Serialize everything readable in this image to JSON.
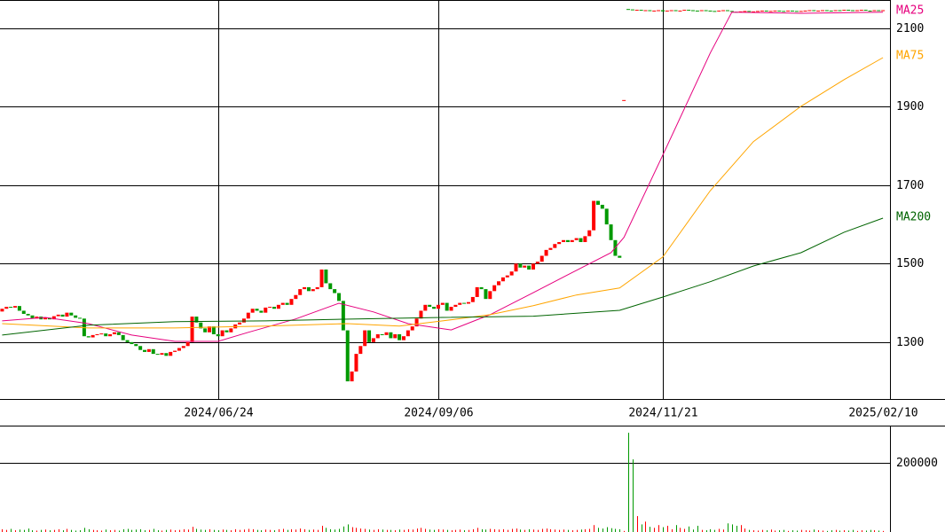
{
  "chart_data": {
    "type": "candlestick",
    "categories": [
      null,
      null,
      null,
      null,
      null,
      null,
      null,
      null,
      null,
      null,
      null,
      null,
      null,
      null,
      null,
      null,
      null,
      null,
      null,
      null,
      null,
      null,
      null,
      null,
      null,
      null,
      null,
      null,
      null,
      null,
      null,
      null,
      null,
      null,
      null,
      null,
      null,
      null,
      null,
      null,
      null,
      null,
      null,
      null,
      null,
      null,
      null,
      null,
      null,
      null,
      "2024/06/24",
      null,
      null,
      null,
      null,
      null,
      null,
      null,
      null,
      null,
      null,
      null,
      null,
      null,
      null,
      null,
      null,
      null,
      null,
      null,
      null,
      null,
      null,
      null,
      null,
      null,
      null,
      null,
      null,
      null,
      null,
      null,
      null,
      null,
      null,
      null,
      null,
      null,
      null,
      null,
      null,
      null,
      null,
      null,
      null,
      null,
      null,
      null,
      null,
      null,
      null,
      "2024/09/06",
      null,
      null,
      null,
      null,
      null,
      null,
      null,
      null,
      null,
      null,
      null,
      null,
      null,
      null,
      null,
      null,
      null,
      null,
      null,
      null,
      null,
      null,
      null,
      null,
      null,
      null,
      null,
      null,
      null,
      null,
      null,
      null,
      null,
      null,
      null,
      null,
      null,
      null,
      null,
      null,
      null,
      null,
      null,
      null,
      null,
      null,
      null,
      null,
      null,
      null,
      null,
      "2024/11/21",
      null,
      null,
      null,
      null,
      null,
      null,
      null,
      null,
      null,
      null,
      null,
      null,
      null,
      null,
      null,
      null,
      null,
      null,
      null,
      null,
      null,
      null,
      null,
      null,
      null,
      null,
      null,
      null,
      null,
      null,
      null,
      null,
      null,
      null,
      null,
      null,
      null,
      null,
      null,
      null,
      null,
      null,
      null,
      null,
      null,
      null,
      null,
      null,
      null,
      null,
      "2025/02/10"
    ],
    "open": [
      1378,
      1385,
      1390,
      1388,
      1392,
      1380,
      1372,
      1368,
      1360,
      1365,
      1358,
      1362,
      1358,
      1366,
      1370,
      1365,
      1375,
      1368,
      1362,
      1360,
      1315,
      1312,
      1318,
      1320,
      1322,
      1315,
      1320,
      1325,
      1318,
      1305,
      1300,
      1295,
      1290,
      1280,
      1275,
      1282,
      1270,
      1268,
      1272,
      1265,
      1275,
      1278,
      1285,
      1290,
      1300,
      1365,
      1350,
      1335,
      1325,
      1340,
      1320,
      1315,
      1330,
      1325,
      1335,
      1345,
      1350,
      1360,
      1375,
      1385,
      1380,
      1375,
      1388,
      1390,
      1385,
      1395,
      1400,
      1395,
      1410,
      1420,
      1435,
      1440,
      1430,
      1435,
      1440,
      1485,
      1450,
      1435,
      1425,
      1405,
      1330,
      1200,
      1225,
      1270,
      1290,
      1330,
      1300,
      1310,
      1320,
      1318,
      1325,
      1310,
      1320,
      1305,
      1315,
      1330,
      1340,
      1360,
      1380,
      1395,
      1390,
      1385,
      1395,
      1400,
      1380,
      1390,
      1395,
      1400,
      1398,
      1402,
      1415,
      1440,
      1435,
      1410,
      1430,
      1445,
      1455,
      1465,
      1470,
      1480,
      1500,
      1490,
      1495,
      1485,
      1500,
      1505,
      1520,
      1535,
      1540,
      1550,
      1555,
      1560,
      1555,
      1560,
      1565,
      1555,
      1570,
      1585,
      1660,
      1650,
      1640,
      1600,
      1560,
      1520,
      1917,
      2149,
      2148,
      2146,
      2147,
      2145,
      2146,
      2144,
      2145,
      2146,
      2143,
      2145,
      2146,
      2144,
      2145,
      2147,
      2146,
      2145,
      2144,
      2146,
      2145,
      2144,
      2143,
      2145,
      2146,
      2144,
      2142,
      2141,
      2143,
      2144,
      2142,
      2143,
      2144,
      2145,
      2143,
      2144,
      2145,
      2144,
      2143,
      2145,
      2144,
      2143,
      2144,
      2145,
      2146,
      2144,
      2145,
      2146,
      2145,
      2144,
      2146,
      2145,
      2147,
      2146,
      2145,
      2146,
      2147,
      2145,
      2144,
      2146,
      2145
    ],
    "close": [
      1385,
      1390,
      1388,
      1392,
      1380,
      1372,
      1368,
      1360,
      1365,
      1358,
      1362,
      1358,
      1366,
      1370,
      1365,
      1375,
      1368,
      1362,
      1360,
      1315,
      1312,
      1318,
      1320,
      1322,
      1315,
      1320,
      1325,
      1318,
      1305,
      1300,
      1295,
      1290,
      1280,
      1275,
      1282,
      1270,
      1268,
      1272,
      1265,
      1275,
      1278,
      1285,
      1290,
      1300,
      1365,
      1350,
      1335,
      1325,
      1340,
      1320,
      1315,
      1330,
      1325,
      1335,
      1345,
      1350,
      1360,
      1375,
      1385,
      1380,
      1375,
      1388,
      1390,
      1385,
      1395,
      1400,
      1395,
      1410,
      1420,
      1435,
      1440,
      1430,
      1435,
      1440,
      1485,
      1450,
      1435,
      1425,
      1405,
      1330,
      1200,
      1225,
      1270,
      1290,
      1330,
      1300,
      1310,
      1320,
      1318,
      1325,
      1310,
      1320,
      1305,
      1315,
      1330,
      1340,
      1360,
      1380,
      1395,
      1390,
      1385,
      1395,
      1400,
      1380,
      1390,
      1395,
      1400,
      1398,
      1402,
      1415,
      1440,
      1435,
      1410,
      1430,
      1445,
      1455,
      1465,
      1470,
      1480,
      1500,
      1490,
      1495,
      1485,
      1500,
      1505,
      1520,
      1535,
      1540,
      1550,
      1555,
      1560,
      1555,
      1560,
      1565,
      1555,
      1570,
      1585,
      1660,
      1650,
      1640,
      1600,
      1560,
      1520,
      1515,
      1917,
      2148,
      2146,
      2147,
      2145,
      2146,
      2144,
      2145,
      2146,
      2143,
      2145,
      2146,
      2144,
      2145,
      2147,
      2146,
      2145,
      2144,
      2146,
      2145,
      2144,
      2143,
      2145,
      2146,
      2144,
      2142,
      2141,
      2143,
      2144,
      2142,
      2143,
      2144,
      2145,
      2143,
      2144,
      2145,
      2144,
      2143,
      2145,
      2144,
      2143,
      2144,
      2145,
      2146,
      2144,
      2145,
      2146,
      2145,
      2144,
      2146,
      2145,
      2147,
      2146,
      2145,
      2146,
      2147,
      2145,
      2144,
      2146,
      2145,
      2146
    ],
    "volume": [
      8000,
      6000,
      9000,
      5000,
      7000,
      6000,
      10000,
      5000,
      4000,
      6000,
      7000,
      5000,
      6000,
      8000,
      5000,
      9000,
      6000,
      4000,
      5000,
      12000,
      8000,
      6000,
      5000,
      4000,
      7000,
      5000,
      6000,
      4000,
      8000,
      9000,
      6000,
      7000,
      8000,
      5000,
      6000,
      9000,
      5000,
      4000,
      6000,
      7000,
      5000,
      6000,
      8000,
      7000,
      15000,
      9000,
      7000,
      6000,
      8000,
      6000,
      5000,
      7000,
      6000,
      5000,
      8000,
      6000,
      7000,
      9000,
      8000,
      6000,
      5000,
      7000,
      6000,
      5000,
      8000,
      9000,
      6000,
      8000,
      7000,
      10000,
      8000,
      6000,
      7000,
      6000,
      18000,
      12000,
      8000,
      7000,
      9000,
      16000,
      22000,
      14000,
      12000,
      10000,
      9000,
      7000,
      6000,
      8000,
      7000,
      6000,
      6000,
      5000,
      7000,
      6000,
      8000,
      7000,
      10000,
      12000,
      9000,
      7000,
      6000,
      8000,
      7000,
      6000,
      5000,
      6000,
      7000,
      5000,
      6000,
      8000,
      12000,
      8000,
      7000,
      9000,
      8000,
      7000,
      8000,
      6000,
      9000,
      10000,
      7000,
      6000,
      8000,
      7000,
      6000,
      9000,
      10000,
      8000,
      7000,
      6000,
      7000,
      6000,
      5000,
      6000,
      7000,
      8000,
      9000,
      20000,
      12000,
      10000,
      14000,
      11000,
      9000,
      8000,
      3000,
      287000,
      210000,
      46000,
      22000,
      30000,
      15000,
      12000,
      20000,
      14000,
      18000,
      8000,
      20000,
      12000,
      9000,
      16000,
      7000,
      18000,
      6000,
      5000,
      8000,
      6000,
      9000,
      7000,
      25000,
      22000,
      18000,
      20000,
      10000,
      6000,
      5000,
      4000,
      6000,
      5000,
      7000,
      4000,
      5000,
      6000,
      3000,
      5000,
      4000,
      6000,
      5000,
      4000,
      7000,
      5000,
      4000,
      3000,
      5000,
      6000,
      4000,
      5000,
      4000,
      6000,
      3000,
      5000,
      4000,
      6000,
      5000,
      4000,
      3000
    ],
    "up_color": "#ff0000",
    "down_color": "#009900",
    "ylim": [
      1155,
      2172
    ],
    "yticks": [
      1300,
      1500,
      1700,
      1900,
      2100
    ],
    "volume_ylim": [
      0,
      307700
    ],
    "volume_yticks": [
      200000
    ],
    "series": [
      {
        "name": "MA25",
        "color": "#e6007e",
        "x": [
          0,
          10,
          20,
          30,
          40,
          50,
          57,
          68,
          78,
          86,
          94,
          104,
          113,
          123,
          133,
          141,
          144,
          153,
          164,
          169,
          185,
          204
        ],
        "values": [
          1354,
          1363,
          1347,
          1318,
          1302,
          1302,
          1325,
          1359,
          1399,
          1377,
          1347,
          1331,
          1370,
          1426,
          1483,
          1528,
          1567,
          1777,
          2037,
          2141,
          2138,
          2141
        ]
      },
      {
        "name": "MA75",
        "color": "#ffa500",
        "x": [
          0,
          20,
          40,
          61,
          80,
          92,
          102,
          113,
          123,
          133,
          143,
          153,
          164,
          174,
          185,
          195,
          204
        ],
        "values": [
          1347,
          1336,
          1336,
          1341,
          1347,
          1341,
          1354,
          1370,
          1393,
          1420,
          1438,
          1517,
          1686,
          1811,
          1901,
          1969,
          2025
        ]
      },
      {
        "name": "MA200",
        "color": "#006400",
        "x": [
          0,
          20,
          40,
          61,
          82,
          102,
          123,
          143,
          153,
          164,
          174,
          185,
          195,
          204
        ],
        "values": [
          1318,
          1343,
          1352,
          1354,
          1359,
          1363,
          1366,
          1381,
          1415,
          1454,
          1494,
          1528,
          1580,
          1616
        ]
      }
    ]
  }
}
